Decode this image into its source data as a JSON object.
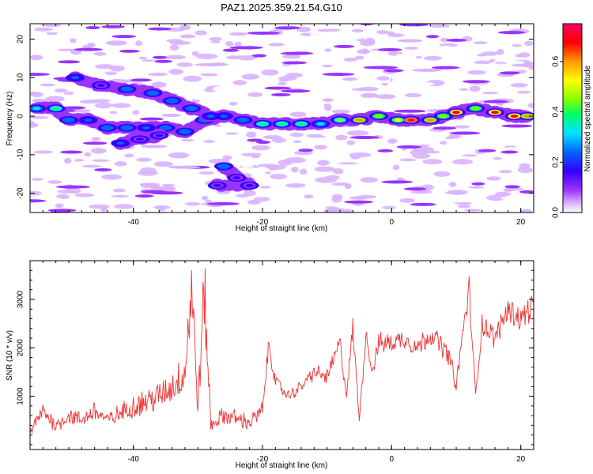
{
  "title": "PAZ1.2025.359.21.54.G10",
  "chart_data": [
    {
      "type": "heatmap",
      "xlabel": "Height of straight line (km)",
      "ylabel": "Frequency (Hz)",
      "xlim": [
        -56,
        22
      ],
      "ylim": [
        -25,
        24
      ],
      "xticks": [
        -40,
        -20,
        0,
        20
      ],
      "yticks": [
        -20,
        -10,
        0,
        10,
        20
      ],
      "colorbar": {
        "label": "Normalized spectral amplitude",
        "range": [
          0,
          0.75
        ],
        "ticks": [
          0,
          0.2,
          0.4,
          0.6
        ],
        "colors": [
          "#ffffff",
          "#d9b3ff",
          "#9933ff",
          "#3300ff",
          "#0066ff",
          "#00e5ff",
          "#00ff66",
          "#88ff00",
          "#ffff00",
          "#ff9900",
          "#ff0000",
          "#ff0066"
        ]
      },
      "ridge": [
        {
          "x": -55,
          "y": 2,
          "a": 0.35
        },
        {
          "x": -52,
          "y": 2,
          "a": 0.4
        },
        {
          "x": -50,
          "y": -1,
          "a": 0.3
        },
        {
          "x": -47,
          "y": -1,
          "a": 0.25
        },
        {
          "x": -44,
          "y": -3,
          "a": 0.3
        },
        {
          "x": -41,
          "y": -3,
          "a": 0.3
        },
        {
          "x": -38,
          "y": -3,
          "a": 0.25
        },
        {
          "x": -35,
          "y": -3,
          "a": 0.3
        },
        {
          "x": -32,
          "y": -4,
          "a": 0.3
        },
        {
          "x": -29,
          "y": -1,
          "a": 0.3
        },
        {
          "x": -26,
          "y": 0,
          "a": 0.25
        },
        {
          "x": -23,
          "y": -1,
          "a": 0.3
        },
        {
          "x": -20,
          "y": -2,
          "a": 0.4
        },
        {
          "x": -17,
          "y": -2,
          "a": 0.4
        },
        {
          "x": -14,
          "y": -2,
          "a": 0.4
        },
        {
          "x": -11,
          "y": -2,
          "a": 0.35
        },
        {
          "x": -8,
          "y": -1,
          "a": 0.45
        },
        {
          "x": -5,
          "y": -1,
          "a": 0.6
        },
        {
          "x": -2,
          "y": 0,
          "a": 0.5
        },
        {
          "x": 1,
          "y": -1,
          "a": 0.55
        },
        {
          "x": 3,
          "y": -1,
          "a": 0.75
        },
        {
          "x": 6,
          "y": -1,
          "a": 0.6
        },
        {
          "x": 8,
          "y": 0,
          "a": 0.5
        },
        {
          "x": 10,
          "y": 1,
          "a": 0.7
        },
        {
          "x": 13,
          "y": 2,
          "a": 0.5
        },
        {
          "x": 16,
          "y": 1,
          "a": 0.7
        },
        {
          "x": 19,
          "y": 0,
          "a": 0.7
        },
        {
          "x": 21,
          "y": 0,
          "a": 0.6
        }
      ],
      "branch": [
        {
          "x": -49,
          "y": 10,
          "a": 0.25
        },
        {
          "x": -45,
          "y": 8,
          "a": 0.2
        },
        {
          "x": -41,
          "y": 7,
          "a": 0.3
        },
        {
          "x": -37,
          "y": 6,
          "a": 0.3
        },
        {
          "x": -34,
          "y": 4,
          "a": 0.3
        },
        {
          "x": -31,
          "y": 2,
          "a": 0.3
        },
        {
          "x": -28,
          "y": 0,
          "a": 0.25
        },
        {
          "x": -42,
          "y": -7,
          "a": 0.25
        },
        {
          "x": -39,
          "y": -6,
          "a": 0.2
        },
        {
          "x": -36,
          "y": -5,
          "a": 0.2
        },
        {
          "x": -26,
          "y": -13,
          "a": 0.3
        },
        {
          "x": -24,
          "y": -16,
          "a": 0.2
        },
        {
          "x": -22,
          "y": -18,
          "a": 0.2
        },
        {
          "x": -27,
          "y": -18,
          "a": 0.2
        }
      ]
    },
    {
      "type": "line",
      "xlabel": "Height of straight line (km)",
      "ylabel": "SNR (10 * v/v)",
      "xlim": [
        -56,
        22
      ],
      "ylim": [
        -100,
        3800
      ],
      "xticks": [
        -40,
        -20,
        0,
        20
      ],
      "yticks": [
        1000,
        2000,
        3000
      ],
      "color": "#ee3333",
      "series": [
        {
          "name": "SNR",
          "x": [
            -56,
            -54,
            -52,
            -50,
            -48,
            -46,
            -44,
            -42,
            -40,
            -38,
            -36,
            -34,
            -32,
            -31,
            -30,
            -29,
            -28,
            -26,
            -24,
            -22,
            -20,
            -19,
            -18,
            -16,
            -14,
            -12,
            -10,
            -8,
            -7,
            -6,
            -5,
            -4,
            -3,
            -2,
            0,
            2,
            4,
            6,
            8,
            9,
            10,
            11,
            12,
            13,
            14,
            16,
            18,
            20,
            22
          ],
          "y": [
            250,
            700,
            400,
            600,
            500,
            700,
            500,
            650,
            800,
            900,
            1000,
            1200,
            1500,
            3300,
            800,
            3200,
            400,
            600,
            550,
            450,
            700,
            2100,
            1300,
            1000,
            1200,
            1500,
            1400,
            2100,
            1000,
            2400,
            500,
            2300,
            1500,
            2100,
            2100,
            2200,
            2000,
            2300,
            2000,
            1800,
            1200,
            2300,
            3200,
            1000,
            2500,
            2200,
            2800,
            2600,
            2900
          ]
        }
      ]
    }
  ]
}
